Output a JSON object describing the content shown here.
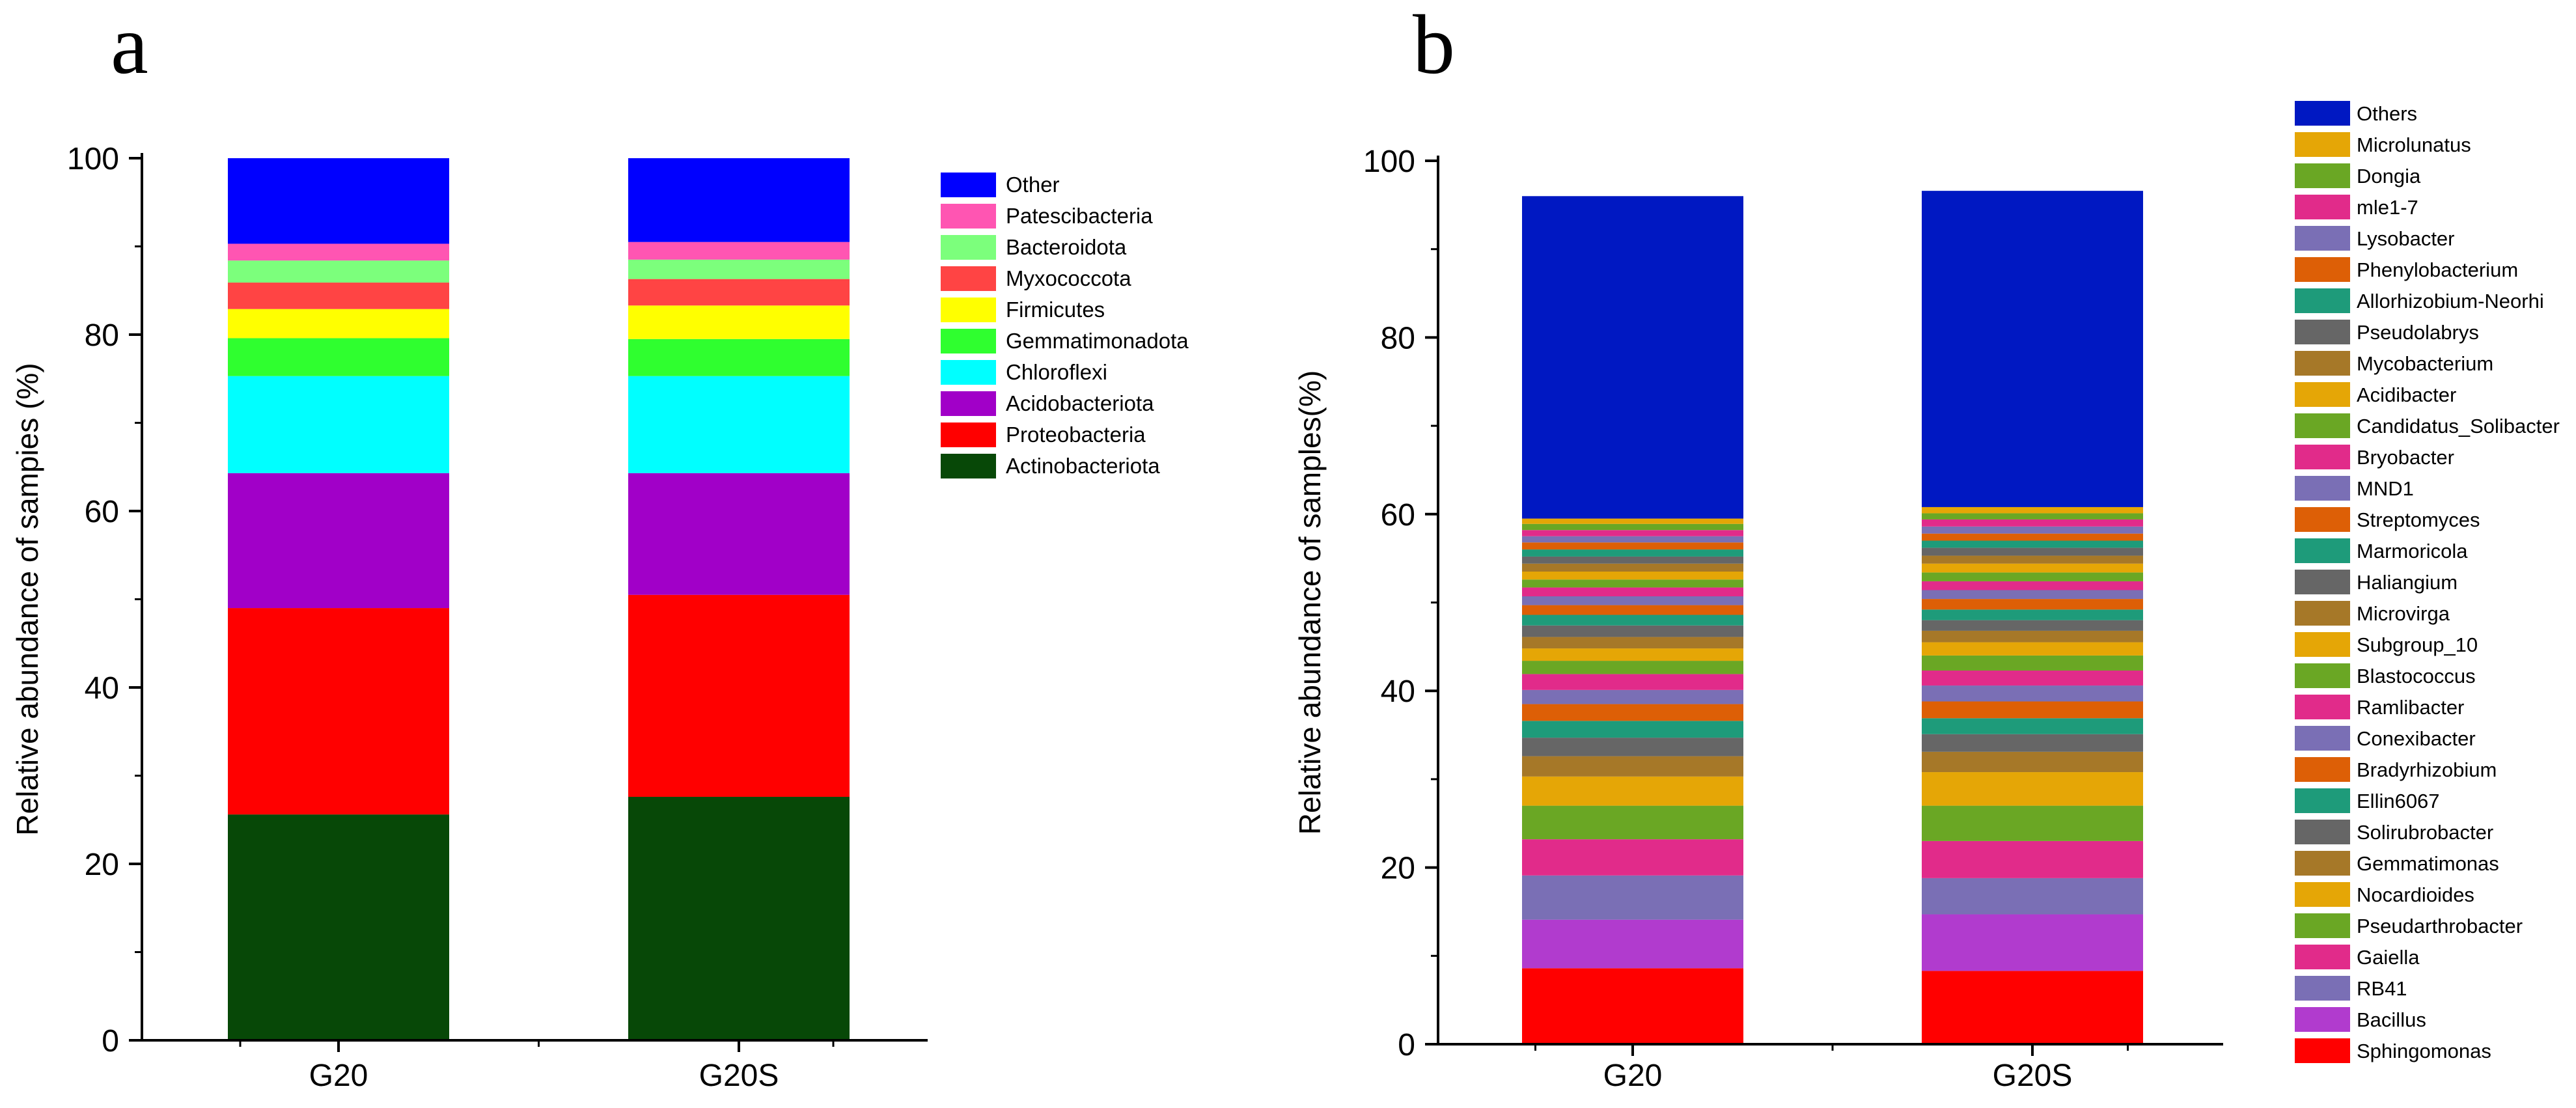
{
  "panel_letters": [
    "a",
    "b"
  ],
  "chart_data": [
    {
      "type": "bar",
      "stacked": true,
      "panel": "a",
      "title": "",
      "xlabel": "",
      "ylabel": "Relative abundance of sampies (%)",
      "categories": [
        "G20",
        "G20S"
      ],
      "ylim": [
        0,
        100
      ],
      "yticks": [
        0,
        20,
        40,
        60,
        80,
        100
      ],
      "grid": false,
      "legend_position": "right",
      "series": [
        {
          "name": "Actinobacteriota",
          "color": "#074807",
          "values": [
            25.6,
            27.6
          ]
        },
        {
          "name": "Proteobacteria",
          "color": "#ff0000",
          "values": [
            23.4,
            22.9
          ]
        },
        {
          "name": "Acidobacteriota",
          "color": "#a100c8",
          "values": [
            15.3,
            13.8
          ]
        },
        {
          "name": "Chloroflexi",
          "color": "#00ffff",
          "values": [
            11.0,
            11.0
          ]
        },
        {
          "name": "Gemmatimonadota",
          "color": "#2fff2f",
          "values": [
            4.3,
            4.2
          ]
        },
        {
          "name": "Firmicutes",
          "color": "#ffff00",
          "values": [
            3.3,
            3.8
          ]
        },
        {
          "name": "Myxococcota",
          "color": "#ff4444",
          "values": [
            3.0,
            3.0
          ]
        },
        {
          "name": "Bacteroidota",
          "color": "#7cff7c",
          "values": [
            2.5,
            2.2
          ]
        },
        {
          "name": "Patescibacteria",
          "color": "#ff55b2",
          "values": [
            1.9,
            2.0
          ]
        },
        {
          "name": "Other",
          "color": "#0000ff",
          "values": [
            9.7,
            9.5
          ]
        }
      ]
    },
    {
      "type": "bar",
      "stacked": true,
      "panel": "b",
      "title": "",
      "xlabel": "",
      "ylabel": "Relative abundance of  samples(%)",
      "categories": [
        "G20",
        "G20S"
      ],
      "ylim": [
        0,
        100
      ],
      "yticks": [
        0,
        20,
        40,
        60,
        80,
        100
      ],
      "grid": false,
      "legend_position": "right",
      "series": [
        {
          "name": "Sphingomonas",
          "color": "#ff0000",
          "values": [
            8.6,
            8.3
          ]
        },
        {
          "name": "Bacillus",
          "color": "#b13bce",
          "values": [
            5.5,
            6.4
          ]
        },
        {
          "name": "RB41",
          "color": "#7a6fb5",
          "values": [
            5.0,
            4.1
          ]
        },
        {
          "name": "Gaiella",
          "color": "#e12b8a",
          "values": [
            4.1,
            4.2
          ]
        },
        {
          "name": "Pseudarthrobacter",
          "color": "#6aa724",
          "values": [
            3.8,
            4.0
          ]
        },
        {
          "name": "Nocardioides",
          "color": "#e5a606",
          "values": [
            3.3,
            3.8
          ]
        },
        {
          "name": "Gemmatimonas",
          "color": "#a67828",
          "values": [
            2.3,
            2.3
          ]
        },
        {
          "name": "Solirubrobacter",
          "color": "#666666",
          "values": [
            2.1,
            2.0
          ]
        },
        {
          "name": "Ellin6067",
          "color": "#1e9b7a",
          "values": [
            1.9,
            1.8
          ]
        },
        {
          "name": "Bradyrhizobium",
          "color": "#dd5f06",
          "values": [
            1.9,
            1.9
          ]
        },
        {
          "name": "Conexibacter",
          "color": "#7a6fb5",
          "values": [
            1.6,
            1.8
          ]
        },
        {
          "name": "Ramlibacter",
          "color": "#e12b8a",
          "values": [
            1.8,
            1.7
          ]
        },
        {
          "name": "Blastococcus",
          "color": "#6aa724",
          "values": [
            1.5,
            1.7
          ]
        },
        {
          "name": "Subgroup_10",
          "color": "#e5a606",
          "values": [
            1.4,
            1.5
          ]
        },
        {
          "name": "Microvirga",
          "color": "#a67828",
          "values": [
            1.3,
            1.3
          ]
        },
        {
          "name": "Haliangium",
          "color": "#666666",
          "values": [
            1.3,
            1.2
          ]
        },
        {
          "name": "Marmoricola",
          "color": "#1e9b7a",
          "values": [
            1.2,
            1.2
          ]
        },
        {
          "name": "Streptomyces",
          "color": "#dd5f06",
          "values": [
            1.1,
            1.2
          ]
        },
        {
          "name": "MND1",
          "color": "#7a6fb5",
          "values": [
            1.0,
            1.0
          ]
        },
        {
          "name": "Bryobacter",
          "color": "#e12b8a",
          "values": [
            1.0,
            1.0
          ]
        },
        {
          "name": "Candidatus_Solibacter",
          "color": "#6aa724",
          "values": [
            0.9,
            1.0
          ]
        },
        {
          "name": "Acidibacter",
          "color": "#e5a606",
          "values": [
            0.9,
            1.0
          ]
        },
        {
          "name": "Mycobacterium",
          "color": "#a67828",
          "values": [
            0.9,
            0.9
          ]
        },
        {
          "name": "Pseudolabrys",
          "color": "#666666",
          "values": [
            0.8,
            0.9
          ]
        },
        {
          "name": "Allorhizobium-Neorhi",
          "color": "#1e9b7a",
          "values": [
            0.8,
            0.8
          ]
        },
        {
          "name": "Phenylobacterium",
          "color": "#dd5f06",
          "values": [
            0.8,
            0.8
          ]
        },
        {
          "name": "Lysobacter",
          "color": "#7a6fb5",
          "values": [
            0.7,
            0.8
          ]
        },
        {
          "name": "mle1-7",
          "color": "#e12b8a",
          "values": [
            0.7,
            0.8
          ]
        },
        {
          "name": "Dongia",
          "color": "#6aa724",
          "values": [
            0.7,
            0.7
          ]
        },
        {
          "name": "Microlunatus",
          "color": "#e5a606",
          "values": [
            0.6,
            0.7
          ]
        },
        {
          "name": "Others",
          "color": "#0018c2",
          "values": [
            36.5,
            35.8
          ]
        }
      ]
    }
  ]
}
